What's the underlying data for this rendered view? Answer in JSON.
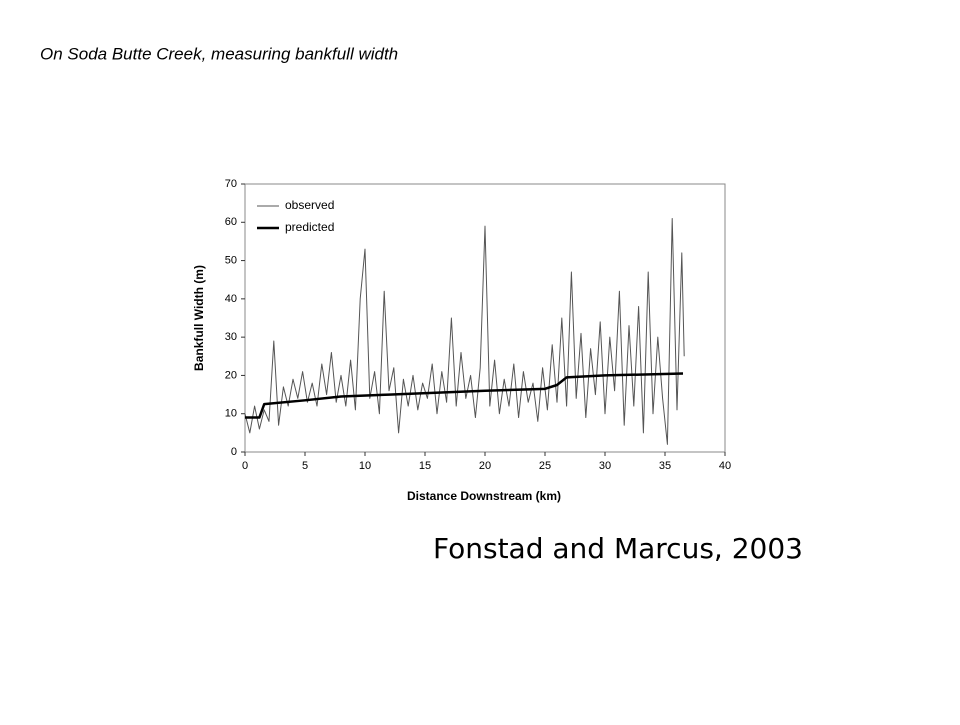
{
  "heading": "On Soda Butte Creek, measuring bankfull width",
  "citation": "Fonstad and Marcus, 2003",
  "chart_data": {
    "type": "line",
    "x_label": "Distance Downstream (km)",
    "y_label": "Bankfull Width (m)",
    "xlim": [
      0,
      40
    ],
    "xticks": [
      0,
      5,
      10,
      15,
      20,
      25,
      30,
      35,
      40
    ],
    "ylim": [
      0,
      70
    ],
    "yticks": [
      0,
      10,
      20,
      30,
      40,
      50,
      60,
      70
    ],
    "grid": false,
    "legend": "upper left",
    "series": [
      {
        "name": "observed",
        "color": "#555555",
        "width": 1,
        "x": [
          0,
          0.4,
          0.8,
          1.2,
          1.6,
          2.0,
          2.4,
          2.8,
          3.2,
          3.6,
          4.0,
          4.4,
          4.8,
          5.2,
          5.6,
          6.0,
          6.4,
          6.8,
          7.2,
          7.6,
          8.0,
          8.4,
          8.8,
          9.2,
          9.6,
          10.0,
          10.4,
          10.8,
          11.2,
          11.6,
          12.0,
          12.4,
          12.8,
          13.2,
          13.6,
          14.0,
          14.4,
          14.8,
          15.2,
          15.6,
          16.0,
          16.4,
          16.8,
          17.2,
          17.6,
          18.0,
          18.4,
          18.8,
          19.2,
          19.6,
          20.0,
          20.4,
          20.8,
          21.2,
          21.6,
          22.0,
          22.4,
          22.8,
          23.2,
          23.6,
          24.0,
          24.4,
          24.8,
          25.2,
          25.6,
          26.0,
          26.4,
          26.8,
          27.2,
          27.6,
          28.0,
          28.4,
          28.8,
          29.2,
          29.6,
          30.0,
          30.4,
          30.8,
          31.2,
          31.6,
          32.0,
          32.4,
          32.8,
          33.2,
          33.6,
          34.0,
          34.4,
          34.8,
          35.2,
          35.6,
          36.0,
          36.4,
          36.6
        ],
        "values": [
          10,
          5,
          12,
          6,
          11,
          8,
          29,
          7,
          17,
          12,
          19,
          14,
          21,
          13,
          18,
          12,
          23,
          15,
          26,
          13,
          20,
          12,
          24,
          11,
          40,
          53,
          14,
          21,
          10,
          42,
          16,
          22,
          5,
          19,
          12,
          20,
          11,
          18,
          14,
          23,
          10,
          21,
          13,
          35,
          12,
          26,
          14,
          20,
          9,
          22,
          59,
          12,
          24,
          10,
          19,
          12,
          23,
          9,
          21,
          13,
          18,
          8,
          22,
          11,
          28,
          13,
          35,
          12,
          47,
          14,
          31,
          9,
          27,
          15,
          34,
          10,
          30,
          16,
          42,
          7,
          33,
          12,
          38,
          5,
          47,
          10,
          30,
          14,
          2,
          61,
          11,
          52,
          25
        ]
      },
      {
        "name": "predicted",
        "color": "#000000",
        "width": 2.5,
        "x": [
          0,
          1.2,
          1.6,
          5,
          8,
          12,
          20,
          25,
          26,
          26.8,
          30,
          36.5
        ],
        "values": [
          9,
          9,
          12.5,
          13.5,
          14.5,
          15,
          16,
          16.5,
          17.5,
          19.5,
          20,
          20.5
        ]
      }
    ]
  }
}
